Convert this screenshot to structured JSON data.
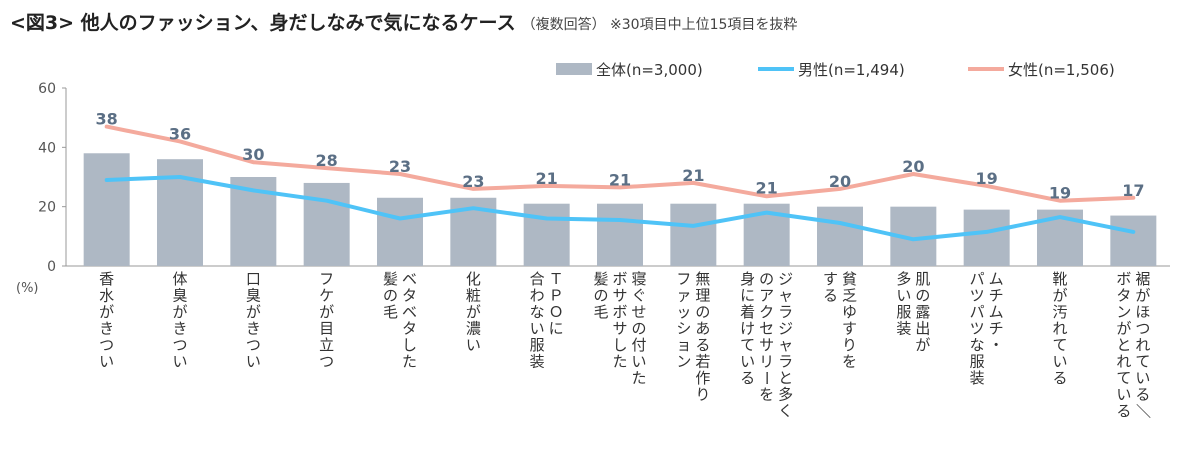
{
  "title": "<図3> 他人のファッション、身だしなみで気になるケース",
  "subtitle": "（複数回答） ※30項目中上位15項目を抜粋",
  "colors": {
    "bar": "#aeb8c4",
    "male": "#4fc3f7",
    "female": "#f4aa9d",
    "axis": "#999999",
    "label": "#5b6f85"
  },
  "chart_data": {
    "type": "bar",
    "unit_label": "(%)",
    "ylim": [
      0,
      60
    ],
    "yticks": [
      0,
      20,
      40,
      60
    ],
    "legend_position": "top-right",
    "categories": [
      "香水がきつい",
      "体臭がきつい",
      "口臭がきつい",
      "フケが目立つ",
      "ベタベタした\n髪の毛",
      "化粧が濃い",
      "ＴＰＯに\n合わない服装",
      "寝ぐせの付いた\nボサボサした\n髪の毛",
      "無理のある若作り\nファッション",
      "ジャラジャラと多く\nのアクセサリーを\n身に着けている",
      "貧乏ゆすりを\nする",
      "肌の露出が\n多い服装",
      "ムチムチ・\nパツパツな服装",
      "靴が汚れている",
      "裾がほつれている／\nボタンがとれている"
    ],
    "series": [
      {
        "name": "全体(n=3,000)",
        "kind": "bar",
        "values": [
          38,
          36,
          30,
          28,
          23,
          23,
          21,
          21,
          21,
          21,
          20,
          20,
          19,
          19,
          17
        ]
      },
      {
        "name": "男性(n=1,494)",
        "kind": "line",
        "values": [
          29,
          30,
          25.5,
          22,
          16,
          19.5,
          16,
          15.5,
          13.5,
          18,
          14.5,
          9,
          11.5,
          16.5,
          11.5
        ]
      },
      {
        "name": "女性(n=1,506)",
        "kind": "line",
        "values": [
          47,
          42,
          35,
          33,
          31,
          26,
          27,
          26.5,
          28,
          23.5,
          26,
          31,
          27,
          22,
          23
        ]
      }
    ],
    "data_labels": [
      "38",
      "36",
      "30",
      "28",
      "23",
      "23",
      "21",
      "21",
      "21",
      "21",
      "20",
      "20",
      "19",
      "19",
      "17"
    ]
  }
}
